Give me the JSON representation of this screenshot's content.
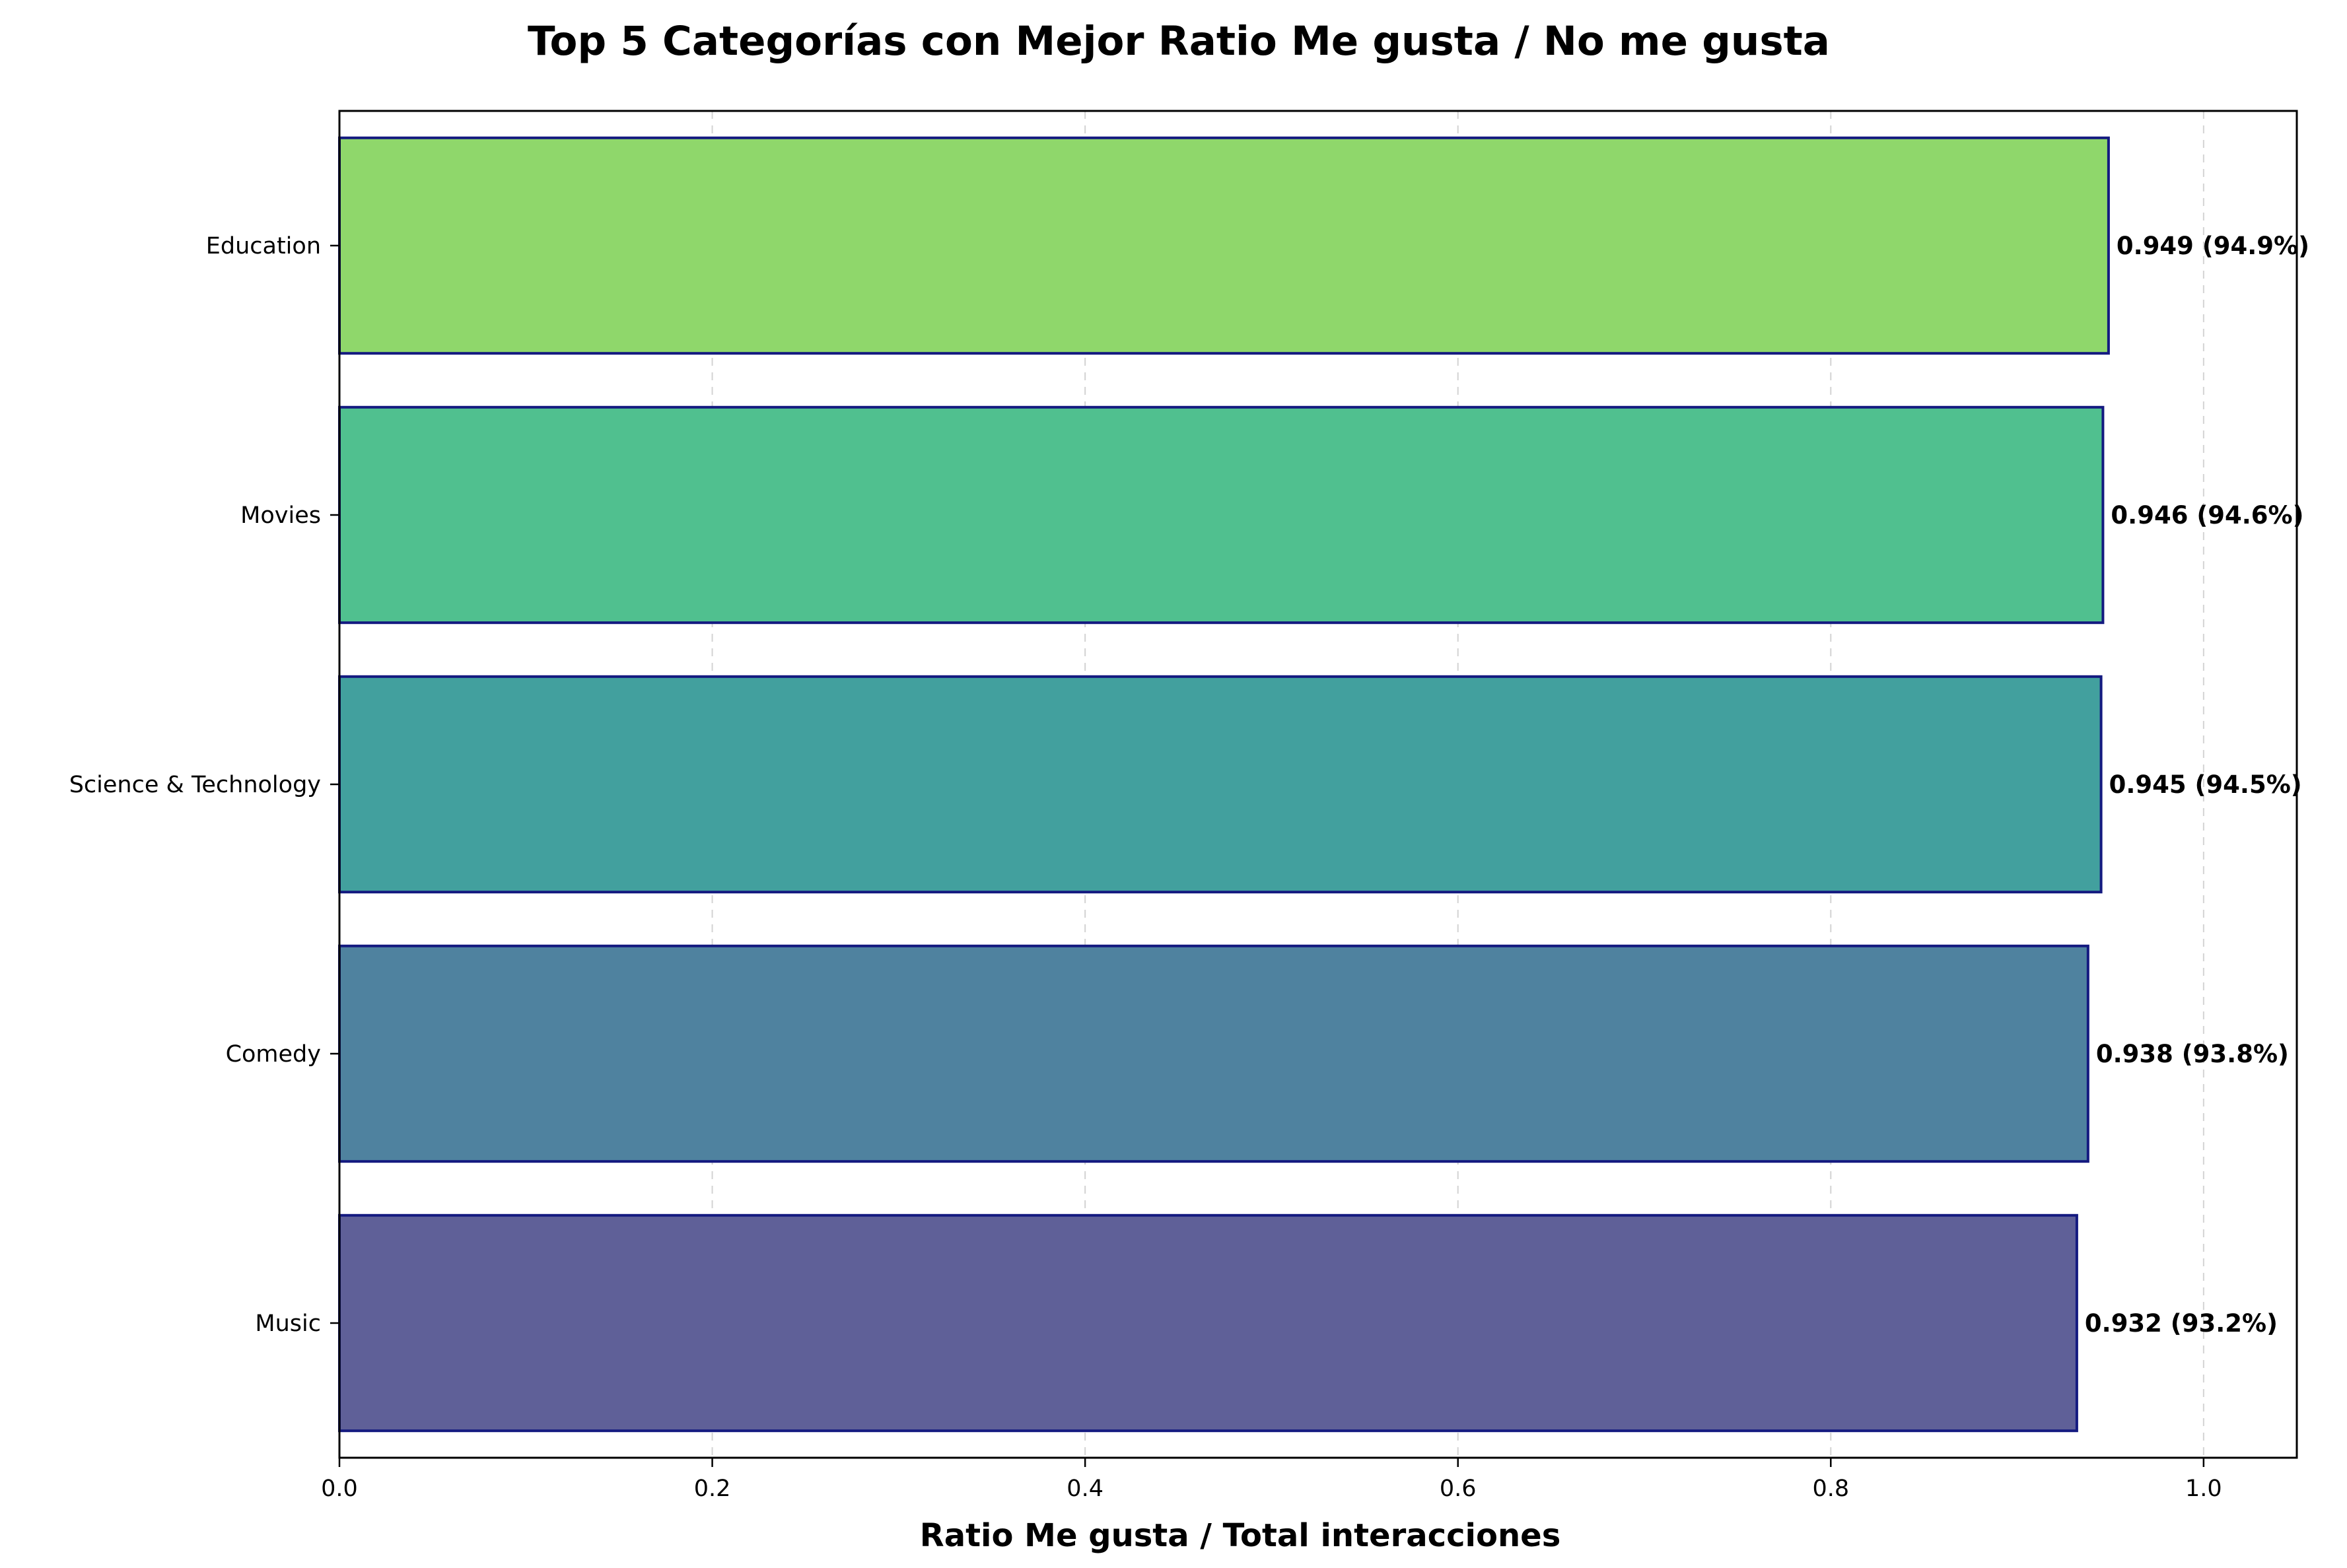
{
  "chart_data": {
    "type": "bar",
    "orientation": "horizontal",
    "title": "Top 5 Categorías con Mejor Ratio Me gusta / No me gusta",
    "xlabel": "Ratio Me gusta / Total interacciones",
    "ylabel": "",
    "categories": [
      "Education",
      "Movies",
      "Science & Technology",
      "Comedy",
      "Music"
    ],
    "values": [
      0.949,
      0.946,
      0.945,
      0.938,
      0.932
    ],
    "value_labels": [
      "0.949 (94.9%)",
      "0.946 (94.6%)",
      "0.945 (94.5%)",
      "0.938 (93.8%)",
      "0.932 (93.2%)"
    ],
    "bar_colors": [
      "#8fd76b",
      "#50c08f",
      "#42a09e",
      "#4f829f",
      "#5f6098"
    ],
    "bar_edge_color": "#141a80",
    "xlim": [
      0,
      1.05
    ],
    "xticks": [
      0.0,
      0.2,
      0.4,
      0.6,
      0.8,
      1.0
    ],
    "xtick_labels": [
      "0.0",
      "0.2",
      "0.4",
      "0.6",
      "0.8",
      "1.0"
    ],
    "grid": "x-axis dashed",
    "legend": "none"
  }
}
